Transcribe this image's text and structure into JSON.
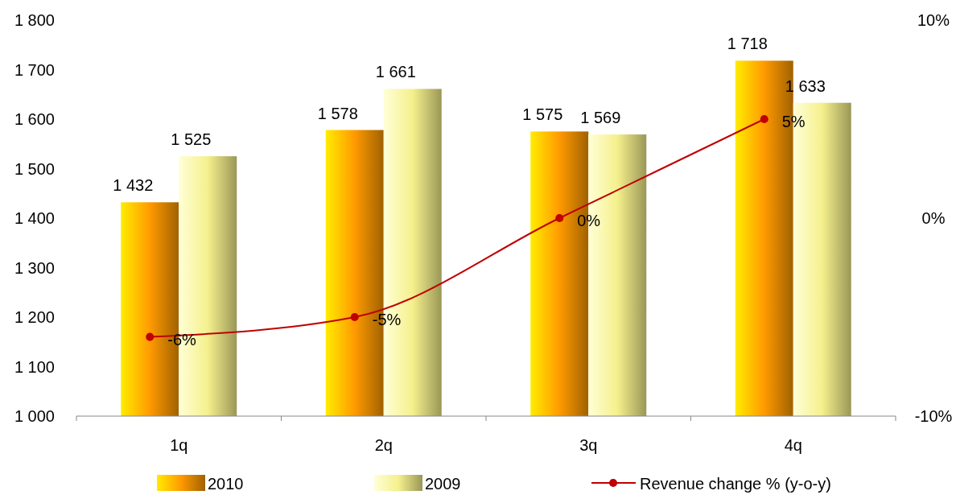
{
  "chart_data": {
    "type": "bar",
    "categories": [
      "1q",
      "2q",
      "3q",
      "4q"
    ],
    "series": [
      {
        "name": "2010",
        "color": "#ff9a00",
        "values": [
          1432,
          1578,
          1575,
          1718
        ],
        "value_labels": [
          "1 432",
          "1 578",
          "1 575",
          "1 718"
        ]
      },
      {
        "name": "2009",
        "color": "#f5f08c",
        "values": [
          1525,
          1661,
          1569,
          1633
        ],
        "value_labels": [
          "1 525",
          "1 661",
          "1 569",
          "1 633"
        ]
      },
      {
        "name": "Revenue change % (y-o-y)",
        "type": "line",
        "axis": "y2",
        "color": "#c00000",
        "values": [
          -6,
          -5,
          0,
          5
        ],
        "value_labels": [
          "-6%",
          "-5%",
          "0%",
          "5%"
        ]
      }
    ],
    "ylim": [
      1000,
      1800
    ],
    "yticks": [
      {
        "value": 1000,
        "label": "1 000"
      },
      {
        "value": 1100,
        "label": "1 100"
      },
      {
        "value": 1200,
        "label": "1 200"
      },
      {
        "value": 1300,
        "label": "1 300"
      },
      {
        "value": 1400,
        "label": "1 400"
      },
      {
        "value": 1500,
        "label": "1 500"
      },
      {
        "value": 1600,
        "label": "1 600"
      },
      {
        "value": 1700,
        "label": "1 700"
      },
      {
        "value": 1800,
        "label": "1 800"
      }
    ],
    "y2lim": [
      -10,
      10
    ],
    "y2ticks": [
      {
        "value": -10,
        "label": "-10%"
      },
      {
        "value": 0,
        "label": "0%"
      },
      {
        "value": 10,
        "label": "10%"
      }
    ],
    "marker": "circle",
    "grid": false,
    "legend": "bottom"
  }
}
